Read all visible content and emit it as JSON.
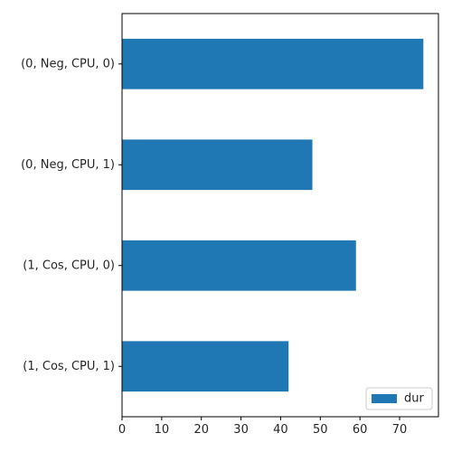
{
  "chart_data": {
    "type": "bar",
    "orientation": "horizontal",
    "title": "",
    "xlabel": "",
    "ylabel": "",
    "categories": [
      "(0, Neg, CPU, 0)",
      "(0, Neg, CPU, 1)",
      "(1, Cos, CPU, 0)",
      "(1, Cos, CPU, 1)"
    ],
    "series": [
      {
        "name": "dur",
        "values": [
          76,
          48,
          59,
          42
        ],
        "color": "#1f77b4"
      }
    ],
    "xlim": [
      0,
      79.8
    ],
    "xticks": [
      0,
      10,
      20,
      30,
      40,
      50,
      60,
      70
    ],
    "grid": false,
    "legend_position": "lower-right"
  }
}
